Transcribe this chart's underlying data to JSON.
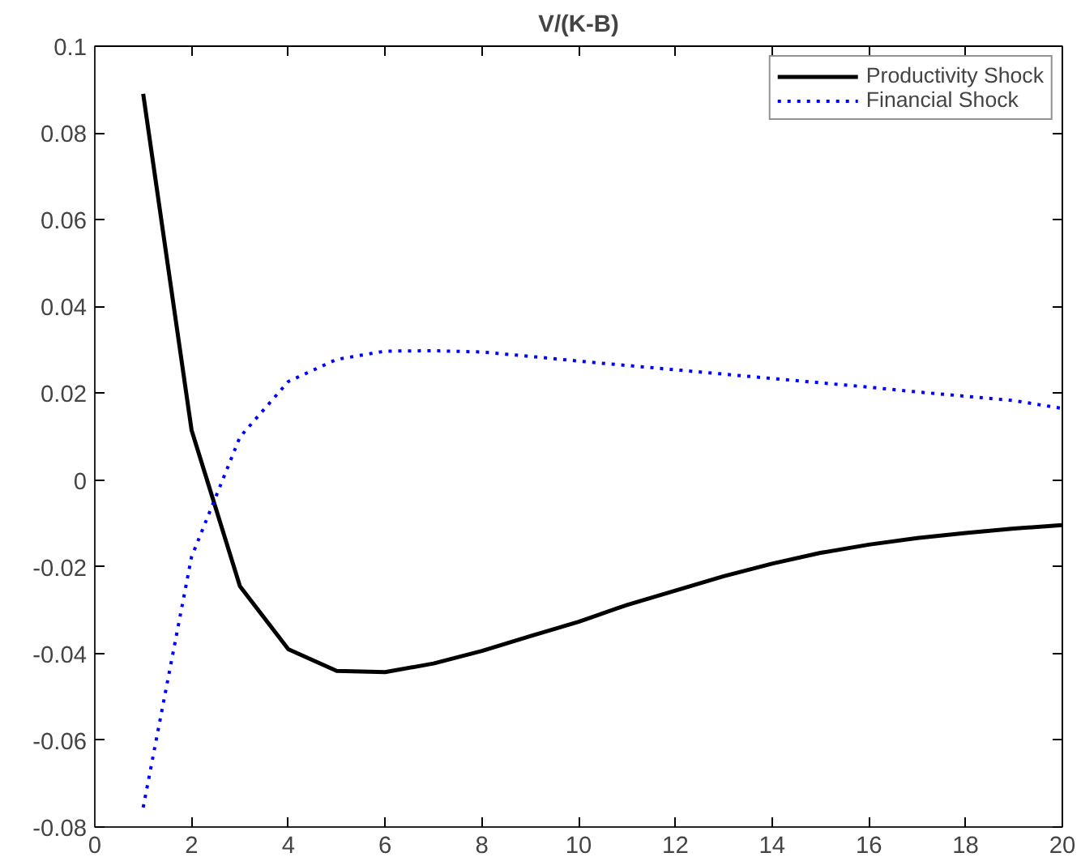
{
  "chart_data": {
    "type": "line",
    "title": "V/(K-B)",
    "x": [
      1,
      2,
      3,
      4,
      5,
      6,
      7,
      8,
      9,
      10,
      11,
      12,
      13,
      14,
      15,
      16,
      17,
      18,
      19,
      20
    ],
    "series": [
      {
        "name": "Productivity Shock",
        "color": "#000000",
        "line_style": "solid",
        "values": [
          0.089,
          0.0115,
          -0.0245,
          -0.039,
          -0.044,
          -0.0443,
          -0.0423,
          -0.0394,
          -0.036,
          -0.0327,
          -0.0288,
          -0.0255,
          -0.0222,
          -0.0193,
          -0.0168,
          -0.0149,
          -0.0134,
          -0.0122,
          -0.0112,
          -0.0104
        ]
      },
      {
        "name": "Financial Shock",
        "color": "#0000ff",
        "line_style": "dotted",
        "values": [
          -0.0755,
          -0.0177,
          0.0099,
          0.0227,
          0.0278,
          0.0297,
          0.0298,
          0.0295,
          0.0285,
          0.0274,
          0.0264,
          0.0254,
          0.0244,
          0.0234,
          0.0224,
          0.0214,
          0.0203,
          0.0193,
          0.0183,
          0.0165
        ]
      }
    ],
    "xlim": [
      0,
      20
    ],
    "xticks": [
      0,
      2,
      4,
      6,
      8,
      10,
      12,
      14,
      16,
      18,
      20
    ],
    "ylim": [
      -0.08,
      0.1
    ],
    "yticks": [
      -0.08,
      -0.06,
      -0.04,
      -0.02,
      0,
      0.02,
      0.04,
      0.06,
      0.08,
      0.1
    ],
    "grid": false,
    "legend": "top right",
    "marker": "none"
  }
}
